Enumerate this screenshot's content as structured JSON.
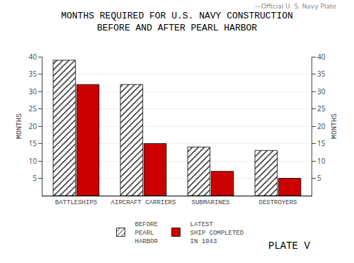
{
  "chart_data": {
    "type": "bar",
    "title": "MONTHS REQUIRED FOR U.S. NAVY CONSTRUCTION",
    "subtitle": "BEFORE AND AFTER PEARL HARBOR",
    "ylabel": "MONTHS",
    "y2label": "MONTHS",
    "categories": [
      "BATTLESHIPS",
      "AIRCRAFT CARRIERS",
      "SUBMARINES",
      "DESTROYERS"
    ],
    "series": [
      {
        "name": "BEFORE\nPEARL\nHARBOR",
        "color": "#ffffff",
        "values": [
          39,
          32,
          14,
          13
        ]
      },
      {
        "name": "LATEST\nSHIP COMPLETED\nIN 1943",
        "color": "#cc0000",
        "values": [
          32,
          15,
          7,
          5
        ]
      }
    ],
    "ylim": [
      0,
      40
    ],
    "yticks": [
      5,
      10,
      15,
      20,
      25,
      30,
      35,
      40
    ],
    "y2lim": [
      0,
      40
    ],
    "y2ticks": [
      5,
      10,
      15,
      20,
      25,
      30,
      35,
      40
    ],
    "grid": true,
    "legend": "bottom",
    "annotations": [
      {
        "text": "—Official U. S. Navy Plate"
      },
      {
        "text": "PLATE V"
      }
    ]
  }
}
